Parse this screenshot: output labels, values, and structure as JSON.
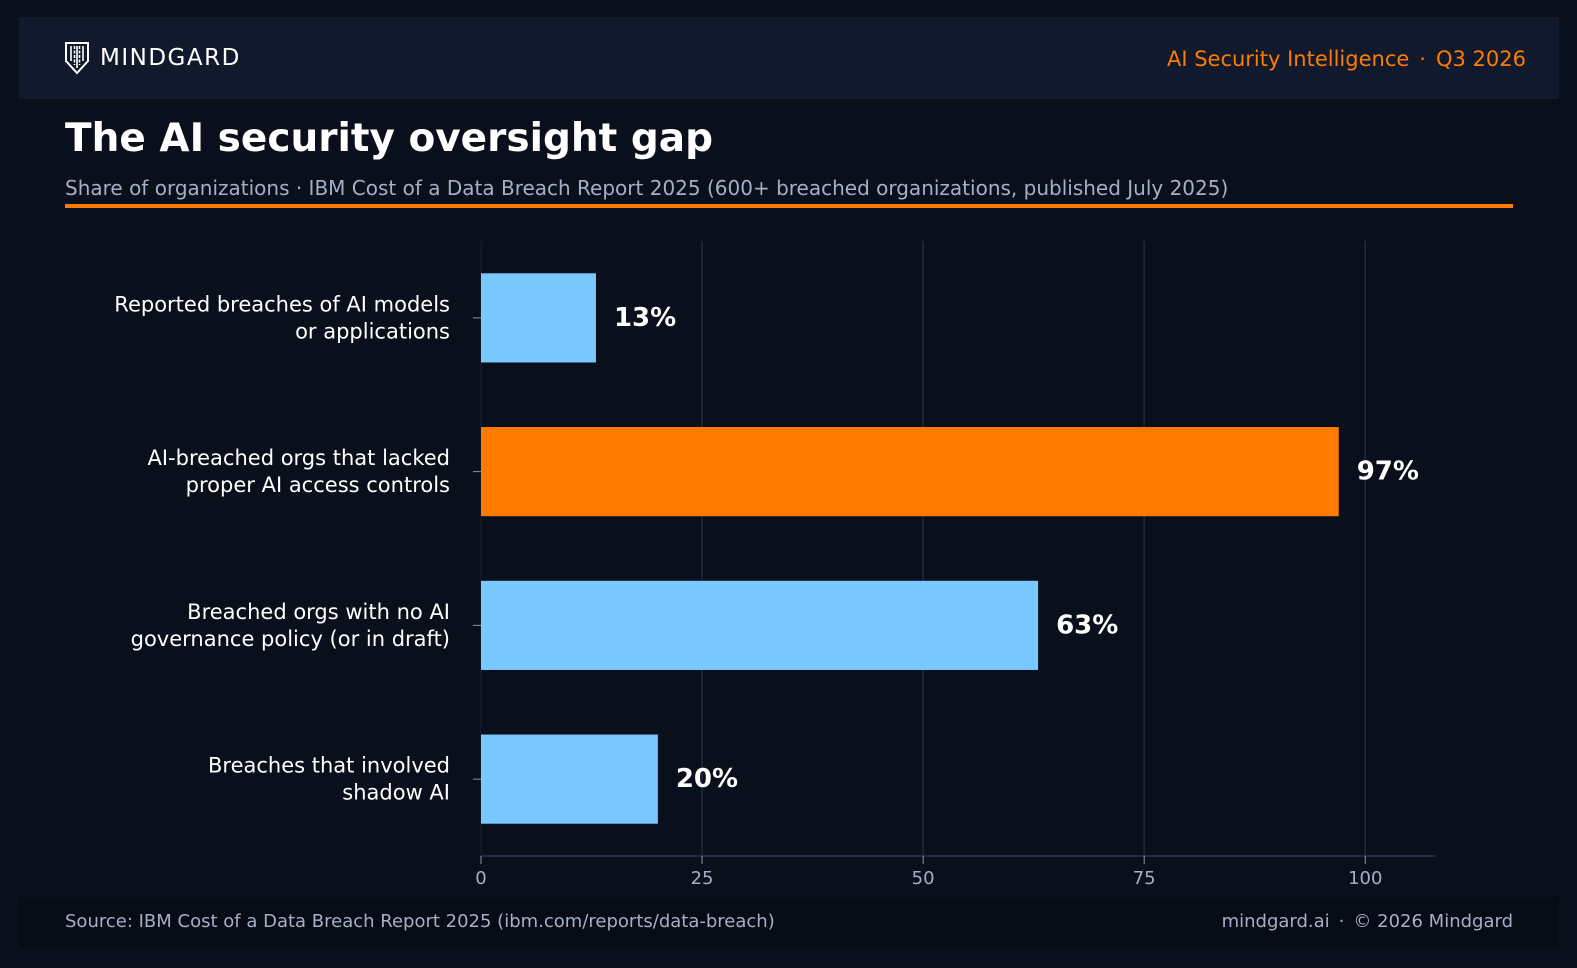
{
  "header": {
    "brand": "MINDGARD",
    "logo_icon": "shield-logo-icon",
    "section": "AI Security Intelligence",
    "period": "Q3 2026",
    "accent_color": "#ff7b00"
  },
  "title": "The AI security oversight gap",
  "subtitle": "Share of organizations · IBM Cost of a Data Breach Report 2025 (600+ breached organizations, published July 2025)",
  "chart_data": {
    "type": "bar",
    "orientation": "horizontal",
    "categories": [
      [
        "Reported breaches of AI models",
        "or applications"
      ],
      [
        "AI-breached orgs that lacked",
        "proper AI access controls"
      ],
      [
        "Breached orgs with no AI",
        "governance policy (or in draft)"
      ],
      [
        "Breaches that involved",
        "shadow AI"
      ]
    ],
    "values": [
      13,
      97,
      63,
      20
    ],
    "value_labels": [
      "13%",
      "97%",
      "63%",
      "20%"
    ],
    "xlim": [
      0,
      108
    ],
    "xticks": [
      0,
      25,
      50,
      75,
      100
    ],
    "grid": true,
    "bar_colors": [
      "#79c8ff",
      "#ff7b00",
      "#79c8ff",
      "#79c8ff"
    ],
    "title": "",
    "xlabel": "",
    "ylabel": ""
  },
  "footer": {
    "source": "Source: IBM Cost of a Data Breach Report 2025 (ibm.com/reports/data-breach)",
    "site": "mindgard.ai",
    "copyright": "© 2026 Mindgard"
  }
}
